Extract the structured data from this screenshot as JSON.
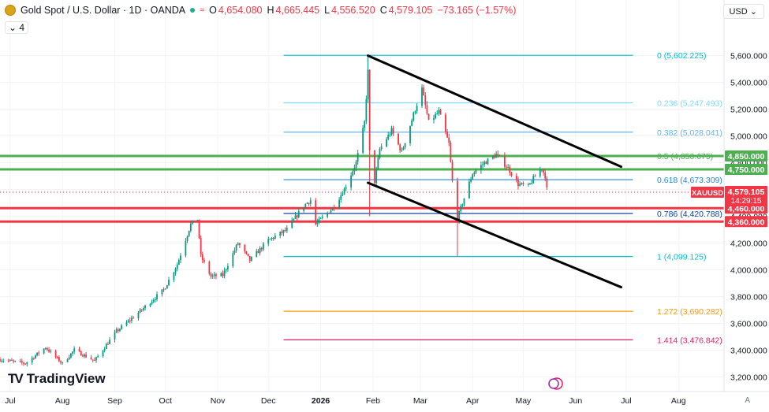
{
  "header": {
    "title": "Gold Spot / U.S. Dollar · 1D · OANDA",
    "open_label": "O",
    "open": "4,654.080",
    "high_label": "H",
    "high": "4,665.445",
    "low_label": "L",
    "low": "4,556.520",
    "close_label": "C",
    "close": "4,579.105",
    "change": "−73.165 (−1.57%)",
    "indicator_count": "4",
    "currency": "USD"
  },
  "brand": {
    "name": "TradingView"
  },
  "chart_data": {
    "type": "candlestick",
    "symbol": "XAUUSD",
    "x_ticks": [
      "Jul",
      "Aug",
      "Sep",
      "Oct",
      "Nov",
      "Dec",
      "2026",
      "Feb",
      "Mar",
      "Apr",
      "May",
      "Jun",
      "Jul",
      "Aug"
    ],
    "y_ticks": [
      3200,
      3400,
      3600,
      3800,
      4000,
      4200,
      4400,
      4600,
      4800,
      5000,
      5200,
      5400,
      5600
    ],
    "ylim": [
      3120,
      5780
    ],
    "price_label": {
      "value": 4579.105,
      "text": "4,579.105",
      "symbol": "XAUUSD",
      "countdown": "14:29:15"
    },
    "fib_levels": [
      {
        "ratio": "0",
        "value": 5602.225,
        "text": "0 (5,602.225)",
        "color": "#00bcd4"
      },
      {
        "ratio": "0.236",
        "value": 5247.493,
        "text": "0.236 (5,247.493)",
        "color": "#80d8ff"
      },
      {
        "ratio": "0.382",
        "value": 5028.041,
        "text": "0.382 (5,028.041)",
        "color": "#64b5f6"
      },
      {
        "ratio": "0.5",
        "value": 4850.675,
        "text": "0.5 (4,850.675)",
        "color": "#4caf50"
      },
      {
        "ratio": "0.618",
        "value": 4673.309,
        "text": "0.618 (4,673.309)",
        "color": "#1e88e5"
      },
      {
        "ratio": "0.786",
        "value": 4420.788,
        "text": "0.786 (4,420.788)",
        "color": "#0d47a1"
      },
      {
        "ratio": "1",
        "value": 4099.125,
        "text": "1 (4,099.125)",
        "color": "#00bcd4"
      },
      {
        "ratio": "1.272",
        "value": 3690.282,
        "text": "1.272 (3,690.282)",
        "color": "#ff9800"
      },
      {
        "ratio": "1.414",
        "value": 3476.842,
        "text": "1.414 (3,476.842)",
        "color": "#e91e63"
      }
    ],
    "horizontal_levels": [
      {
        "value": 4850,
        "text": "4,850.000",
        "color": "#4caf50"
      },
      {
        "value": 4750,
        "text": "4,750.000",
        "color": "#4caf50"
      },
      {
        "value": 4460,
        "text": "4,460.000",
        "color": "#f23645"
      },
      {
        "value": 4360,
        "text": "4,360.000",
        "color": "#f23645"
      }
    ],
    "channel_lines": [
      {
        "name": "upper",
        "from": {
          "x": "2026-01-29",
          "y": 5600
        },
        "to": {
          "x": "2026-06-28",
          "y": 4770
        }
      },
      {
        "name": "lower",
        "from": {
          "x": "2026-01-29",
          "y": 4650
        },
        "to": {
          "x": "2026-06-28",
          "y": 3870
        }
      }
    ],
    "colors": {
      "up": "#089981",
      "down": "#f23645"
    }
  }
}
